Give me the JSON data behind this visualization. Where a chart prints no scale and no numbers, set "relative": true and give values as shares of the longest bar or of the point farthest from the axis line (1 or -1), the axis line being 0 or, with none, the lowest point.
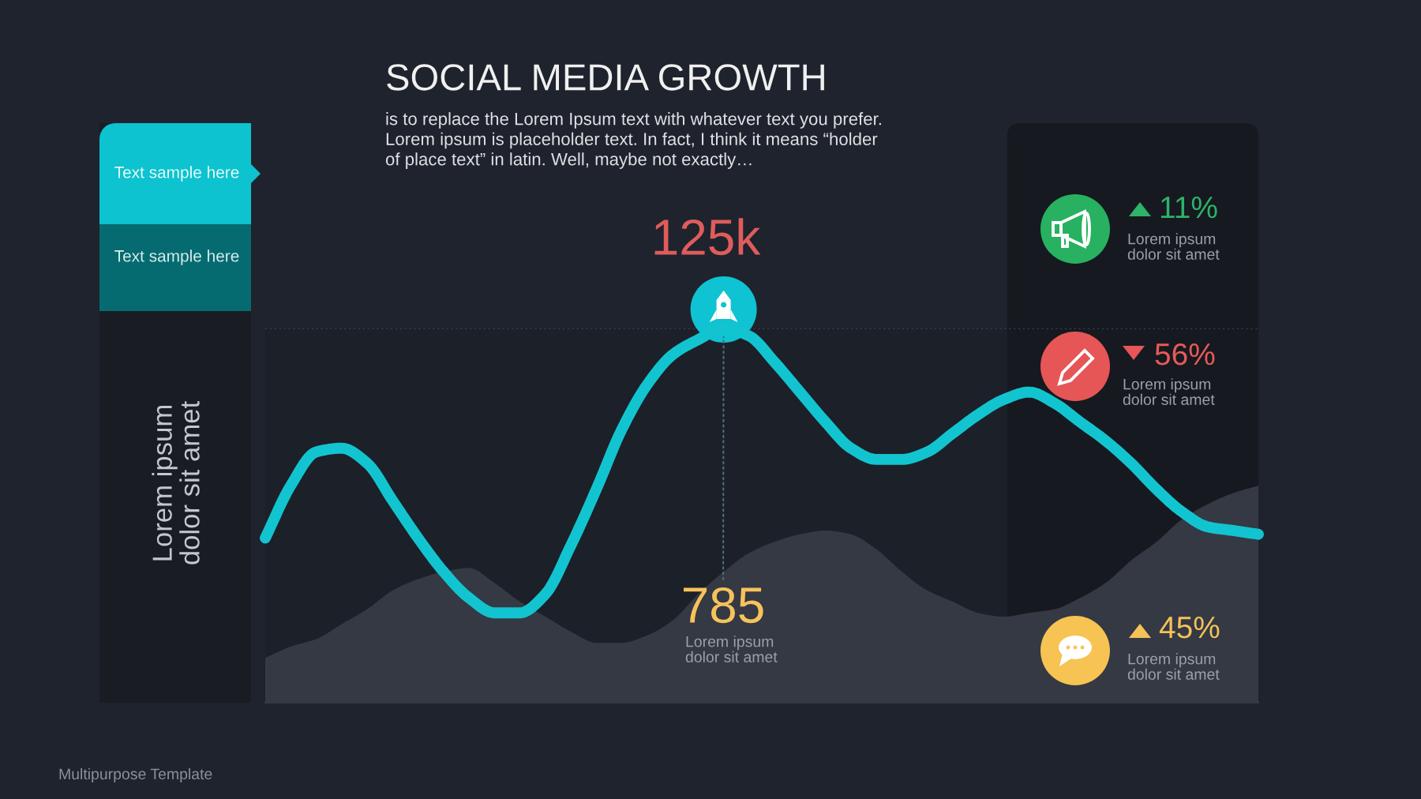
{
  "chart_data": {
    "type": "line",
    "title": "SOCIAL MEDIA GROWTH",
    "subtitle": "is to replace the Lorem Ipsum text with whatever text you prefer.\nLorem ipsum is placeholder text. In fact, I think it means “holder\nof place text” in latin. Well, maybe not exactly…",
    "relative": true,
    "categories": [
      null,
      null,
      null,
      null,
      null,
      null,
      null,
      null,
      null,
      null,
      null,
      null,
      null,
      null,
      null,
      null,
      null,
      null,
      null,
      null,
      null,
      null,
      null,
      null,
      null,
      null,
      null,
      null,
      null,
      null,
      null,
      null,
      null,
      null,
      null,
      null,
      null,
      null,
      null,
      null
    ],
    "series": [
      {
        "type": "line",
        "color": "#12c4d0",
        "values": [
          0.44,
          0.58,
          0.67,
          0.68,
          0.64,
          0.54,
          0.44,
          0.35,
          0.28,
          0.24,
          0.24,
          0.29,
          0.42,
          0.57,
          0.73,
          0.85,
          0.93,
          0.97,
          1.0,
          0.98,
          0.91,
          0.83,
          0.75,
          0.68,
          0.65,
          0.65,
          0.67,
          0.72,
          0.77,
          0.81,
          0.83,
          0.8,
          0.75,
          0.7,
          0.64,
          0.57,
          0.51,
          0.47,
          0.46,
          0.45
        ]
      },
      {
        "type": "area",
        "color": "#343943",
        "values": [
          0.12,
          0.15,
          0.17,
          0.21,
          0.25,
          0.3,
          0.33,
          0.35,
          0.36,
          0.32,
          0.27,
          0.23,
          0.19,
          0.16,
          0.16,
          0.18,
          0.22,
          0.29,
          0.35,
          0.4,
          0.43,
          0.45,
          0.46,
          0.45,
          0.41,
          0.35,
          0.3,
          0.27,
          0.24,
          0.23,
          0.24,
          0.25,
          0.28,
          0.32,
          0.38,
          0.43,
          0.49,
          0.53,
          0.56,
          0.58
        ]
      }
    ],
    "ref_lines": [
      {
        "axis": "y",
        "value": 1.0,
        "color": "#3a4250",
        "line_style": "dotted"
      }
    ],
    "annotations": [
      "Text sample here",
      "Text sample here",
      "Lorem ipsum\ndolor sit amet",
      "125k",
      "785",
      "Lorem ipsum\ndolor sit amet",
      "11%",
      "Lorem ipsum\ndolor sit amet",
      "56%",
      "Lorem ipsum\ndolor sit amet",
      "45%",
      "Lorem ipsum\ndolor sit amet",
      "Multipurpose Template"
    ]
  }
}
